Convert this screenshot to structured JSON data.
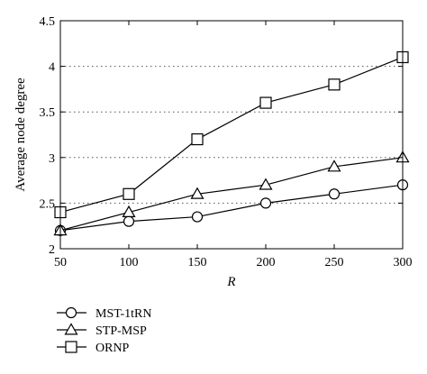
{
  "chart_data": {
    "type": "line",
    "title": "",
    "xlabel": "R",
    "ylabel": "Average node degree",
    "x": [
      50,
      100,
      150,
      200,
      250,
      300
    ],
    "xlim": [
      50,
      300
    ],
    "ylim": [
      2,
      4.5
    ],
    "x_ticks": [
      "50",
      "100",
      "150",
      "200",
      "250",
      "300"
    ],
    "y_ticks": [
      "2",
      "2.5",
      "3",
      "3.5",
      "4",
      "4.5"
    ],
    "grid": "horizontal dotted",
    "legend_placement": "bottom-left, below plot",
    "series": [
      {
        "name": "MST-1tRN",
        "marker": "circle",
        "values": [
          2.2,
          2.3,
          2.35,
          2.5,
          2.6,
          2.7
        ]
      },
      {
        "name": "STP-MSP",
        "marker": "triangle",
        "values": [
          2.2,
          2.4,
          2.6,
          2.7,
          2.9,
          3.0
        ]
      },
      {
        "name": "ORNP",
        "marker": "square",
        "values": [
          2.4,
          2.6,
          3.2,
          3.6,
          3.8,
          4.1
        ]
      }
    ]
  }
}
